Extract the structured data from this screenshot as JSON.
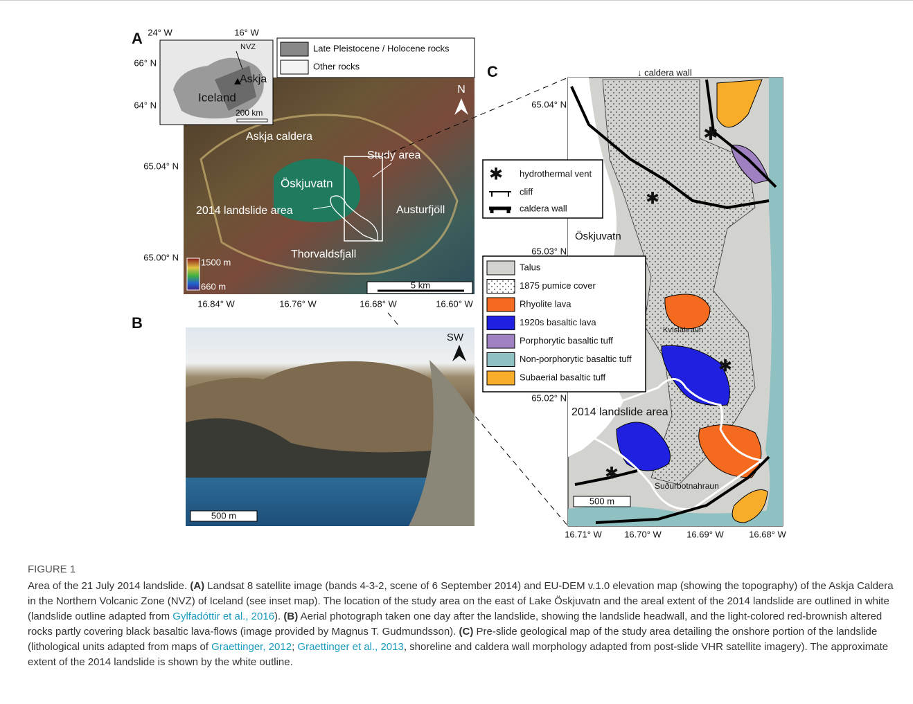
{
  "panel_a": {
    "label": "A",
    "inset": {
      "lon_ticks": [
        "24° W",
        "16° W"
      ],
      "lat_ticks": [
        "66° N",
        "64° N"
      ],
      "zone": "NVZ",
      "volcano": "Askja",
      "country": "Iceland",
      "scale": "200 km"
    },
    "legend": [
      "Late Pleistocene / Holocene rocks",
      "Other rocks"
    ],
    "labels": [
      "Askja caldera",
      "Study area",
      "Öskjuvatn",
      "2014 landslide area",
      "Austurfjöll",
      "Thorvaldsfjall"
    ],
    "north": "N",
    "elevation": [
      "1500 m",
      "660 m"
    ],
    "scale": "5 km",
    "lat_ticks": [
      "65.04° N",
      "65.00° N"
    ],
    "lon_ticks": [
      "16.84° W",
      "16.76° W",
      "16.68° W",
      "16.60° W"
    ]
  },
  "panel_b": {
    "label": "B",
    "direction": "SW",
    "scale": "500 m"
  },
  "panel_c": {
    "label": "C",
    "caldera_note": "↓ caldera wall",
    "symbols": [
      "hydrothermal vent",
      "cliff",
      "caldera wall"
    ],
    "units": [
      "Talus",
      "1875 pumice cover",
      "Rhyolite lava",
      "1920s basaltic lava",
      "Porphorytic basaltic tuff",
      "Non-porphorytic basaltic tuff",
      "Subaerial basaltic tuff"
    ],
    "labels": [
      "Öskjuvatn",
      "Kvíslahraun",
      "2014 landslide area",
      "Suðurbotnahraun"
    ],
    "scale": "500 m",
    "lat_ticks": [
      "65.04° N",
      "65.03° N",
      "65.02° N"
    ],
    "lon_ticks": [
      "16.71° W",
      "16.70° W",
      "16.69° W",
      "16.68° W"
    ]
  },
  "caption": {
    "title": "FIGURE 1",
    "parts": [
      {
        "text": "Area of the 21 July 2014 landslide. ",
        "style": "plain"
      },
      {
        "text": "(A)",
        "style": "bold"
      },
      {
        "text": " Landsat 8 satellite image (bands 4-3-2, scene of 6 September 2014) and EU-DEM v.1.0 elevation map (showing the topography) of the Askja Caldera in the Northern Volcanic Zone (NVZ) of Iceland (see inset map). The location of the study area on the east of Lake Öskjuvatn and the areal extent of the 2014 landslide are outlined in white (landslide outline adapted from ",
        "style": "plain"
      },
      {
        "text": "Gylfadóttir et al., 2016",
        "style": "link"
      },
      {
        "text": "). ",
        "style": "plain"
      },
      {
        "text": "(B)",
        "style": "bold"
      },
      {
        "text": " Aerial photograph taken one day after the landslide, showing the landslide headwall, and the light-colored red-brownish altered rocks partly covering black basaltic lava-flows (image provided by Magnus T. Gudmundsson). ",
        "style": "plain"
      },
      {
        "text": "(C)",
        "style": "bold"
      },
      {
        "text": " Pre-slide geological map of the study area detailing the onshore portion of the landslide (lithological units adapted from maps of ",
        "style": "plain"
      },
      {
        "text": "Graettinger, 2012",
        "style": "link"
      },
      {
        "text": "; ",
        "style": "plain"
      },
      {
        "text": "Graettinger et al., 2013",
        "style": "link"
      },
      {
        "text": ", shoreline and caldera wall morphology adapted from post-slide VHR satellite imagery). The approximate extent of the 2014 landslide is shown by the white outline.",
        "style": "plain"
      }
    ]
  }
}
